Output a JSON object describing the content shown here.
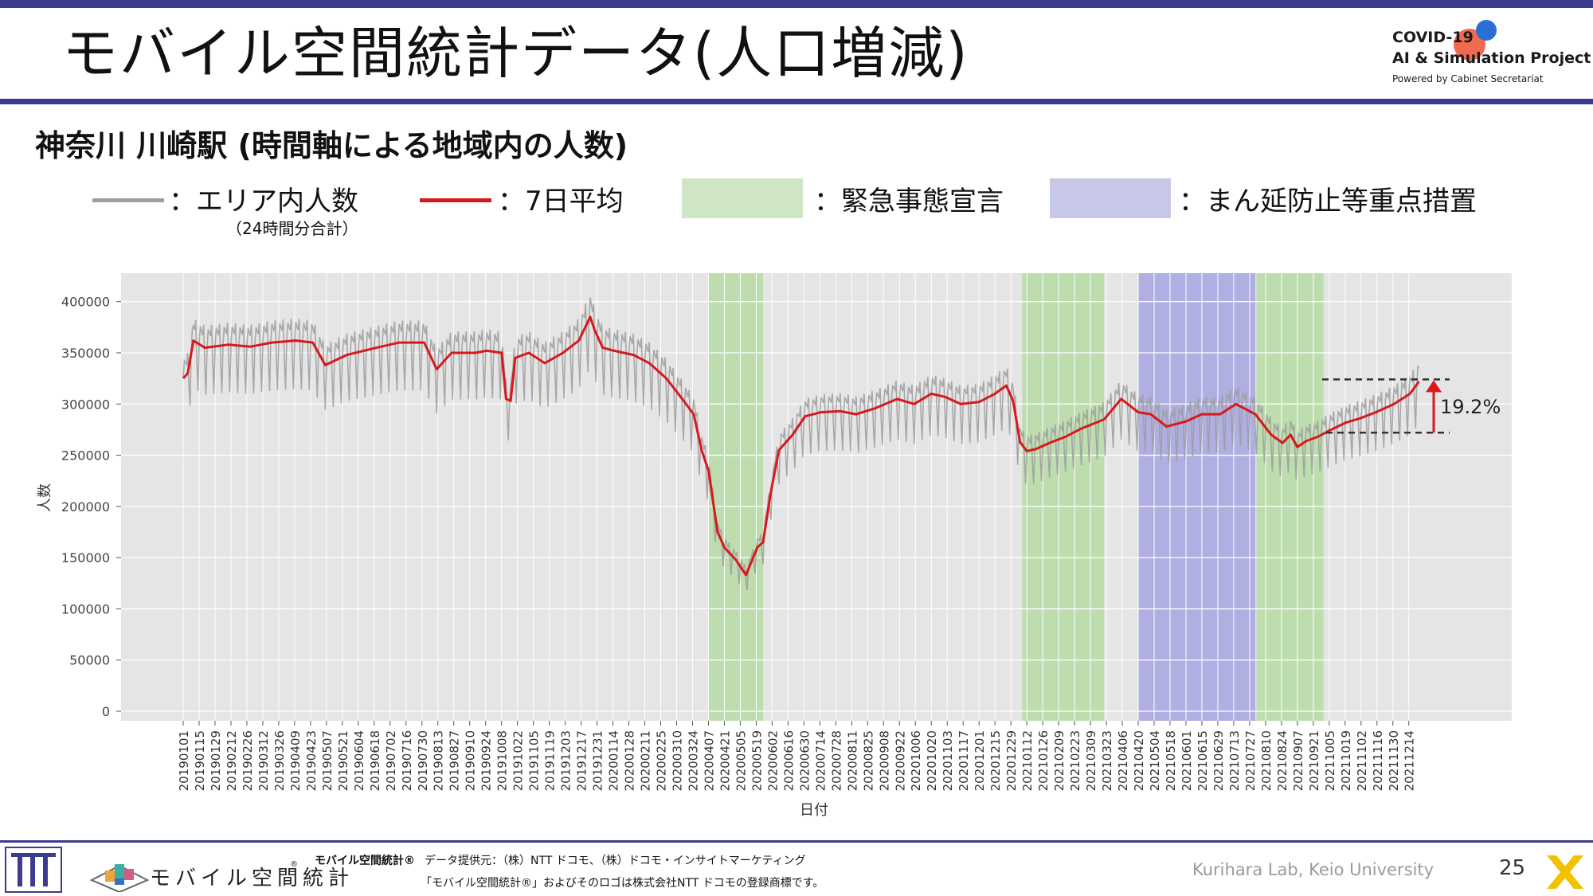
{
  "slide": {
    "title": "モバイル空間統計データ(人口増減)",
    "subtitle": "神奈川 川崎駅 (時間軸による地域内の人数)",
    "page_number": "25",
    "lab": "Kurihara Lab, Keio University"
  },
  "logo": {
    "line1": "COVID-19",
    "line2": "AI & Simulation Project",
    "line3": "Powered by Cabinet Secretariat"
  },
  "legend": {
    "area_count": "：エリア内人数",
    "area_count_note": "（24時間分合計）",
    "avg7": "：7日平均",
    "emergency": "：緊急事態宣言",
    "priority": "：まん延防止等重点措置"
  },
  "footer": {
    "brand": "モバイル空間統計®",
    "data_source": "データ提供元：（株）NTT ドコモ、（株）ドコモ・インサイトマーケティング",
    "trademark": "「モバイル空間統計®」およびそのロゴは株式会社NTT ドコモの登録商標です。",
    "mobile_logo_text": "モバイル空間統計"
  },
  "colors": {
    "accent": "#3b3b8f",
    "raw_line": "#9e9e9e",
    "avg_line": "#d7191c",
    "emergency": "#b8dba9",
    "priority": "#a8a8e0",
    "plot_bg": "#e5e5e5"
  },
  "chart_data": {
    "type": "line",
    "xlabel": "日付",
    "ylabel": "人数",
    "ylim": [
      0,
      420000
    ],
    "yticks": [
      0,
      50000,
      100000,
      150000,
      200000,
      250000,
      300000,
      350000,
      400000
    ],
    "x_start": "20190101",
    "x_end": "20211231",
    "x_tick_labels": [
      "20190101",
      "20190115",
      "20190129",
      "20190212",
      "20190226",
      "20190312",
      "20190326",
      "20190409",
      "20190423",
      "20190507",
      "20190521",
      "20190604",
      "20190618",
      "20190702",
      "20190716",
      "20190730",
      "20190813",
      "20190827",
      "20190910",
      "20190924",
      "20191008",
      "20191022",
      "20191105",
      "20191119",
      "20191203",
      "20191217",
      "20191231",
      "20200114",
      "20200128",
      "20200211",
      "20200225",
      "20200310",
      "20200324",
      "20200407",
      "20200421",
      "20200505",
      "20200519",
      "20200602",
      "20200616",
      "20200630",
      "20200714",
      "20200728",
      "20200811",
      "20200825",
      "20200908",
      "20200922",
      "20201006",
      "20201020",
      "20201103",
      "20201117",
      "20201201",
      "20201215",
      "20201229",
      "20210112",
      "20210126",
      "20210209",
      "20210223",
      "20210309",
      "20210323",
      "20210406",
      "20210420",
      "20210504",
      "20210518",
      "20210601",
      "20210615",
      "20210629",
      "20210713",
      "20210727",
      "20210810",
      "20210824",
      "20210907",
      "20210921",
      "20211005",
      "20211019",
      "20211102",
      "20211116",
      "20211130",
      "20211214"
    ],
    "shaded_periods": [
      {
        "kind": "emergency",
        "start": "20200407",
        "end": "20200525"
      },
      {
        "kind": "emergency",
        "start": "20210108",
        "end": "20210321"
      },
      {
        "kind": "priority",
        "start": "20210420",
        "end": "20210801"
      },
      {
        "kind": "emergency",
        "start": "20210802",
        "end": "20210930"
      }
    ],
    "series": [
      {
        "key": "avg7",
        "points": [
          [
            "20190101",
            325000
          ],
          [
            "20190105",
            330000
          ],
          [
            "20190110",
            362000
          ],
          [
            "20190120",
            355000
          ],
          [
            "20190210",
            358000
          ],
          [
            "20190301",
            356000
          ],
          [
            "20190320",
            360000
          ],
          [
            "20190410",
            362000
          ],
          [
            "20190425",
            360000
          ],
          [
            "20190506",
            338000
          ],
          [
            "20190525",
            348000
          ],
          [
            "20190620",
            355000
          ],
          [
            "20190710",
            360000
          ],
          [
            "20190801",
            360000
          ],
          [
            "20190812",
            334000
          ],
          [
            "20190825",
            350000
          ],
          [
            "20190915",
            350000
          ],
          [
            "20190925",
            352000
          ],
          [
            "20191008",
            350000
          ],
          [
            "20191012",
            305000
          ],
          [
            "20191016",
            303000
          ],
          [
            "20191020",
            345000
          ],
          [
            "20191101",
            350000
          ],
          [
            "20191115",
            340000
          ],
          [
            "20191201",
            350000
          ],
          [
            "20191215",
            362000
          ],
          [
            "20191225",
            385000
          ],
          [
            "20191229",
            372000
          ],
          [
            "20200105",
            355000
          ],
          [
            "20200115",
            352000
          ],
          [
            "20200201",
            348000
          ],
          [
            "20200215",
            340000
          ],
          [
            "20200301",
            325000
          ],
          [
            "20200315",
            305000
          ],
          [
            "20200325",
            290000
          ],
          [
            "20200401",
            255000
          ],
          [
            "20200407",
            235000
          ],
          [
            "20200415",
            175000
          ],
          [
            "20200421",
            160000
          ],
          [
            "20200501",
            148000
          ],
          [
            "20200510",
            133000
          ],
          [
            "20200520",
            160000
          ],
          [
            "20200525",
            165000
          ],
          [
            "20200601",
            215000
          ],
          [
            "20200608",
            255000
          ],
          [
            "20200620",
            270000
          ],
          [
            "20200701",
            288000
          ],
          [
            "20200715",
            292000
          ],
          [
            "20200801",
            293000
          ],
          [
            "20200815",
            290000
          ],
          [
            "20200901",
            296000
          ],
          [
            "20200920",
            305000
          ],
          [
            "20201005",
            300000
          ],
          [
            "20201020",
            310000
          ],
          [
            "20201101",
            307000
          ],
          [
            "20201115",
            300000
          ],
          [
            "20201201",
            302000
          ],
          [
            "20201215",
            310000
          ],
          [
            "20201225",
            318000
          ],
          [
            "20201231",
            303000
          ],
          [
            "20210106",
            263000
          ],
          [
            "20210112",
            254000
          ],
          [
            "20210120",
            256000
          ],
          [
            "20210201",
            262000
          ],
          [
            "20210215",
            268000
          ],
          [
            "20210301",
            276000
          ],
          [
            "20210321",
            285000
          ],
          [
            "20210405",
            305000
          ],
          [
            "20210420",
            292000
          ],
          [
            "20210501",
            290000
          ],
          [
            "20210515",
            278000
          ],
          [
            "20210601",
            283000
          ],
          [
            "20210615",
            290000
          ],
          [
            "20210701",
            290000
          ],
          [
            "20210715",
            300000
          ],
          [
            "20210801",
            290000
          ],
          [
            "20210815",
            270000
          ],
          [
            "20210825",
            262000
          ],
          [
            "20210901",
            270000
          ],
          [
            "20210907",
            258000
          ],
          [
            "20210915",
            264000
          ],
          [
            "20210925",
            268000
          ],
          [
            "20211005",
            274000
          ],
          [
            "20211020",
            282000
          ],
          [
            "20211101",
            286000
          ],
          [
            "20211115",
            292000
          ],
          [
            "20211201",
            300000
          ],
          [
            "20211215",
            310000
          ],
          [
            "20211223",
            322000
          ]
        ]
      }
    ],
    "annotation": {
      "text": "19.2%",
      "from": 272000,
      "to": 324000
    }
  }
}
